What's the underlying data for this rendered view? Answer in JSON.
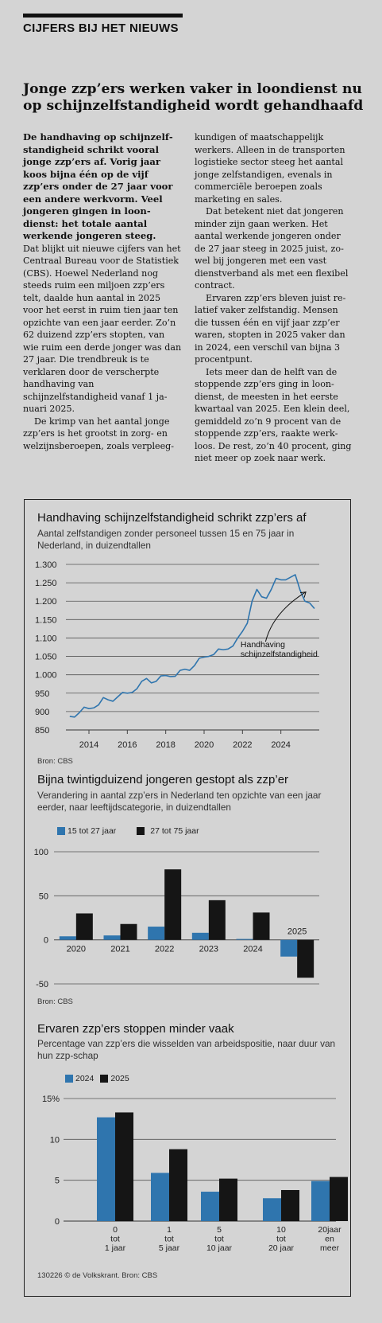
{
  "section_label": "CIJFERS BIJ HET NIEUWS",
  "headline": "Jonge zzp’ers werken vaker in loondienst nu op schijnzelfstandigheid wordt gehandhaafd",
  "lead": "De handhaving op schijnzelf­standigheid schrikt vooral jonge zzp’ers af. Vorig jaar koos bijna één op de vijf zzp’ers onder de 27 jaar voor een andere werkvorm. Veel jongeren gingen in loon­dienst: het totale aantal werkende jongeren steeg.",
  "body_left": [
    "Dat blijkt uit nieuwe cijfers van het Centraal Bureau voor de Statistiek (CBS). Hoewel Neder­land nog steeds ruim een miljoen zzp’ers telt, daalde hun aantal in 2025 voor het eerst in ruim tien jaar ten opzichte van een jaar eer­der. Zo’n 62 duizend zzp’ers stop­ten, van wie ruim een derde jon­ger was dan 27 jaar. Die trend­breuk is te verklaren door de verscherpte handhaving van schijnzelfstandigheid vanaf 1 ja­nuari 2025.",
    "De krimp  van het aantal jonge zzp’ers is het grootst in zorg- en welzijnsberoepen, zoals verpleeg-"
  ],
  "body_right": [
    "kundigen of maatschappelijk werkers. Alleen in de transport­en logistieke sector steeg het aan­tal jonge zelfstandigen, evenals in commerciële beroepen zoals marketing en sales.",
    "Dat betekent niet dat jongeren minder zijn gaan werken. Het aantal werkende jongeren onder de 27 jaar steeg in 2025 juist, zo­wel bij jongeren met een vast dienstverband als met een flexi­bel contract.",
    "Ervaren zzp’ers bleven juist re­latief vaker zelfstandig. Mensen die tussen één en vijf jaar zzp’er waren, stopten in 2025 vaker dan in 2024, een verschil van bijna 3 procentpunt.",
    "Iets meer dan de helft van de stoppende zzp’ers ging in loon­dienst, de meesten in het eerste kwartaal van 2025. Een klein deel, gemiddeld zo’n 9 procent van de stoppende zzp’ers, raakte werk­loos. De rest, zo’n 40 procent, ging niet meer op zoek naar werk."
  ],
  "colors": {
    "blue": "#2f75ae",
    "black": "#151515",
    "line": "#2f75ae",
    "background": "#d4d4d4"
  },
  "chart1_text": {
    "title": "Handhaving schijnzelfstandigheid schrikt zzp’ers af",
    "subtitle": "Aantal zelfstandigen zonder personeel tussen 15 en 75 jaar in Nederland, in duizendtallen",
    "source": "Bron: CBS"
  },
  "chart2_text": {
    "title": "Bijna twintigduizend jongeren gestopt als zzp’er",
    "subtitle": "Verandering in aantal zzp’ers in Nederland ten opzichte van een jaar eerder, naar leeftijdscategorie, in duizendtallen",
    "source": "Bron: CBS"
  },
  "chart3_text": {
    "title": "Ervaren zzp’ers stoppen minder vaak",
    "subtitle": "Percentage van zzp’ers die wisselden van arbeidspositie, naar duur van hun zzp-schap"
  },
  "footer": "130226 © de Volkskrant. Bron: CBS",
  "chart_data": [
    {
      "type": "line",
      "title": "Handhaving schijnzelfstandigheid schrikt zzp’ers af",
      "ylim": [
        850,
        1300
      ],
      "yticks": [
        "1.300",
        "1.250",
        "1.200",
        "1.150",
        "1.100",
        "1.050",
        "1.000",
        "950",
        "900",
        "850"
      ],
      "ytick_values": [
        1300,
        1250,
        1200,
        1150,
        1100,
        1050,
        1000,
        950,
        900,
        850
      ],
      "xticks": [
        "2014",
        "2016",
        "2018",
        "2020",
        "2022",
        "2024"
      ],
      "xtick_values": [
        2014,
        2016,
        2018,
        2020,
        2022,
        2024
      ],
      "xlim": [
        2012.8,
        2026.0
      ],
      "grid": true,
      "annotation": "Handhaving\nschijnzelfstandigheid",
      "series": [
        {
          "x": [
            2013.0,
            2013.25,
            2013.5,
            2013.75,
            2014.0,
            2014.25,
            2014.5,
            2014.75,
            2015.0,
            2015.25,
            2015.5,
            2015.75,
            2016.0,
            2016.25,
            2016.5,
            2016.75,
            2017.0,
            2017.25,
            2017.5,
            2017.75,
            2018.0,
            2018.25,
            2018.5,
            2018.75,
            2019.0,
            2019.25,
            2019.5,
            2019.75,
            2020.0,
            2020.25,
            2020.5,
            2020.75,
            2021.0,
            2021.25,
            2021.5,
            2021.75,
            2022.0,
            2022.25,
            2022.5,
            2022.75,
            2023.0,
            2023.25,
            2023.5,
            2023.75,
            2024.0,
            2024.25,
            2024.5,
            2024.75,
            2025.0,
            2025.25,
            2025.5,
            2025.75
          ],
          "values": [
            887,
            885,
            897,
            912,
            908,
            910,
            918,
            938,
            932,
            928,
            940,
            952,
            950,
            952,
            962,
            982,
            990,
            978,
            982,
            997,
            998,
            995,
            996,
            1012,
            1015,
            1012,
            1025,
            1045,
            1048,
            1050,
            1055,
            1070,
            1068,
            1070,
            1078,
            1100,
            1118,
            1140,
            1200,
            1232,
            1212,
            1208,
            1232,
            1262,
            1258,
            1258,
            1265,
            1272,
            1230,
            1200,
            1195,
            1180
          ]
        }
      ]
    },
    {
      "type": "bar",
      "title": "Bijna twintigduizend jongeren gestopt als zzp’er",
      "categories": [
        "2020",
        "2021",
        "2022",
        "2023",
        "2024",
        "2025"
      ],
      "ylim": [
        -50,
        100
      ],
      "yticks": [
        "100",
        "50",
        "0",
        "-50"
      ],
      "ytick_values": [
        100,
        50,
        0,
        -50
      ],
      "grid": true,
      "series": [
        {
          "name": "15 tot 27 jaar",
          "values": [
            4,
            5,
            15,
            8,
            1,
            -19
          ]
        },
        {
          "name": "27 tot 75 jaar",
          "values": [
            30,
            18,
            80,
            45,
            31,
            -43
          ]
        }
      ]
    },
    {
      "type": "bar",
      "title": "Ervaren zzp’ers stoppen minder vaak",
      "categories": [
        "0 tot 1 jaar",
        "1 tot 5 jaar",
        "5 tot 10 jaar",
        "10 tot 20 jaar",
        "20jaar en meer"
      ],
      "category_lines": [
        [
          "0",
          "tot",
          "1 jaar"
        ],
        [
          "1",
          "tot",
          "5 jaar"
        ],
        [
          "5",
          "tot",
          "10 jaar"
        ],
        [
          "10",
          "tot",
          "20 jaar"
        ],
        [
          "20jaar",
          "en",
          "meer"
        ]
      ],
      "ylim": [
        0,
        15
      ],
      "yticks": [
        "15%",
        "10",
        "5",
        "0"
      ],
      "ytick_values": [
        15,
        10,
        5,
        0
      ],
      "grid": true,
      "series": [
        {
          "name": "2024",
          "values": [
            12.7,
            5.9,
            3.6,
            2.8,
            4.9
          ]
        },
        {
          "name": "2025",
          "values": [
            13.3,
            8.8,
            5.2,
            3.8,
            5.4
          ]
        }
      ]
    }
  ]
}
